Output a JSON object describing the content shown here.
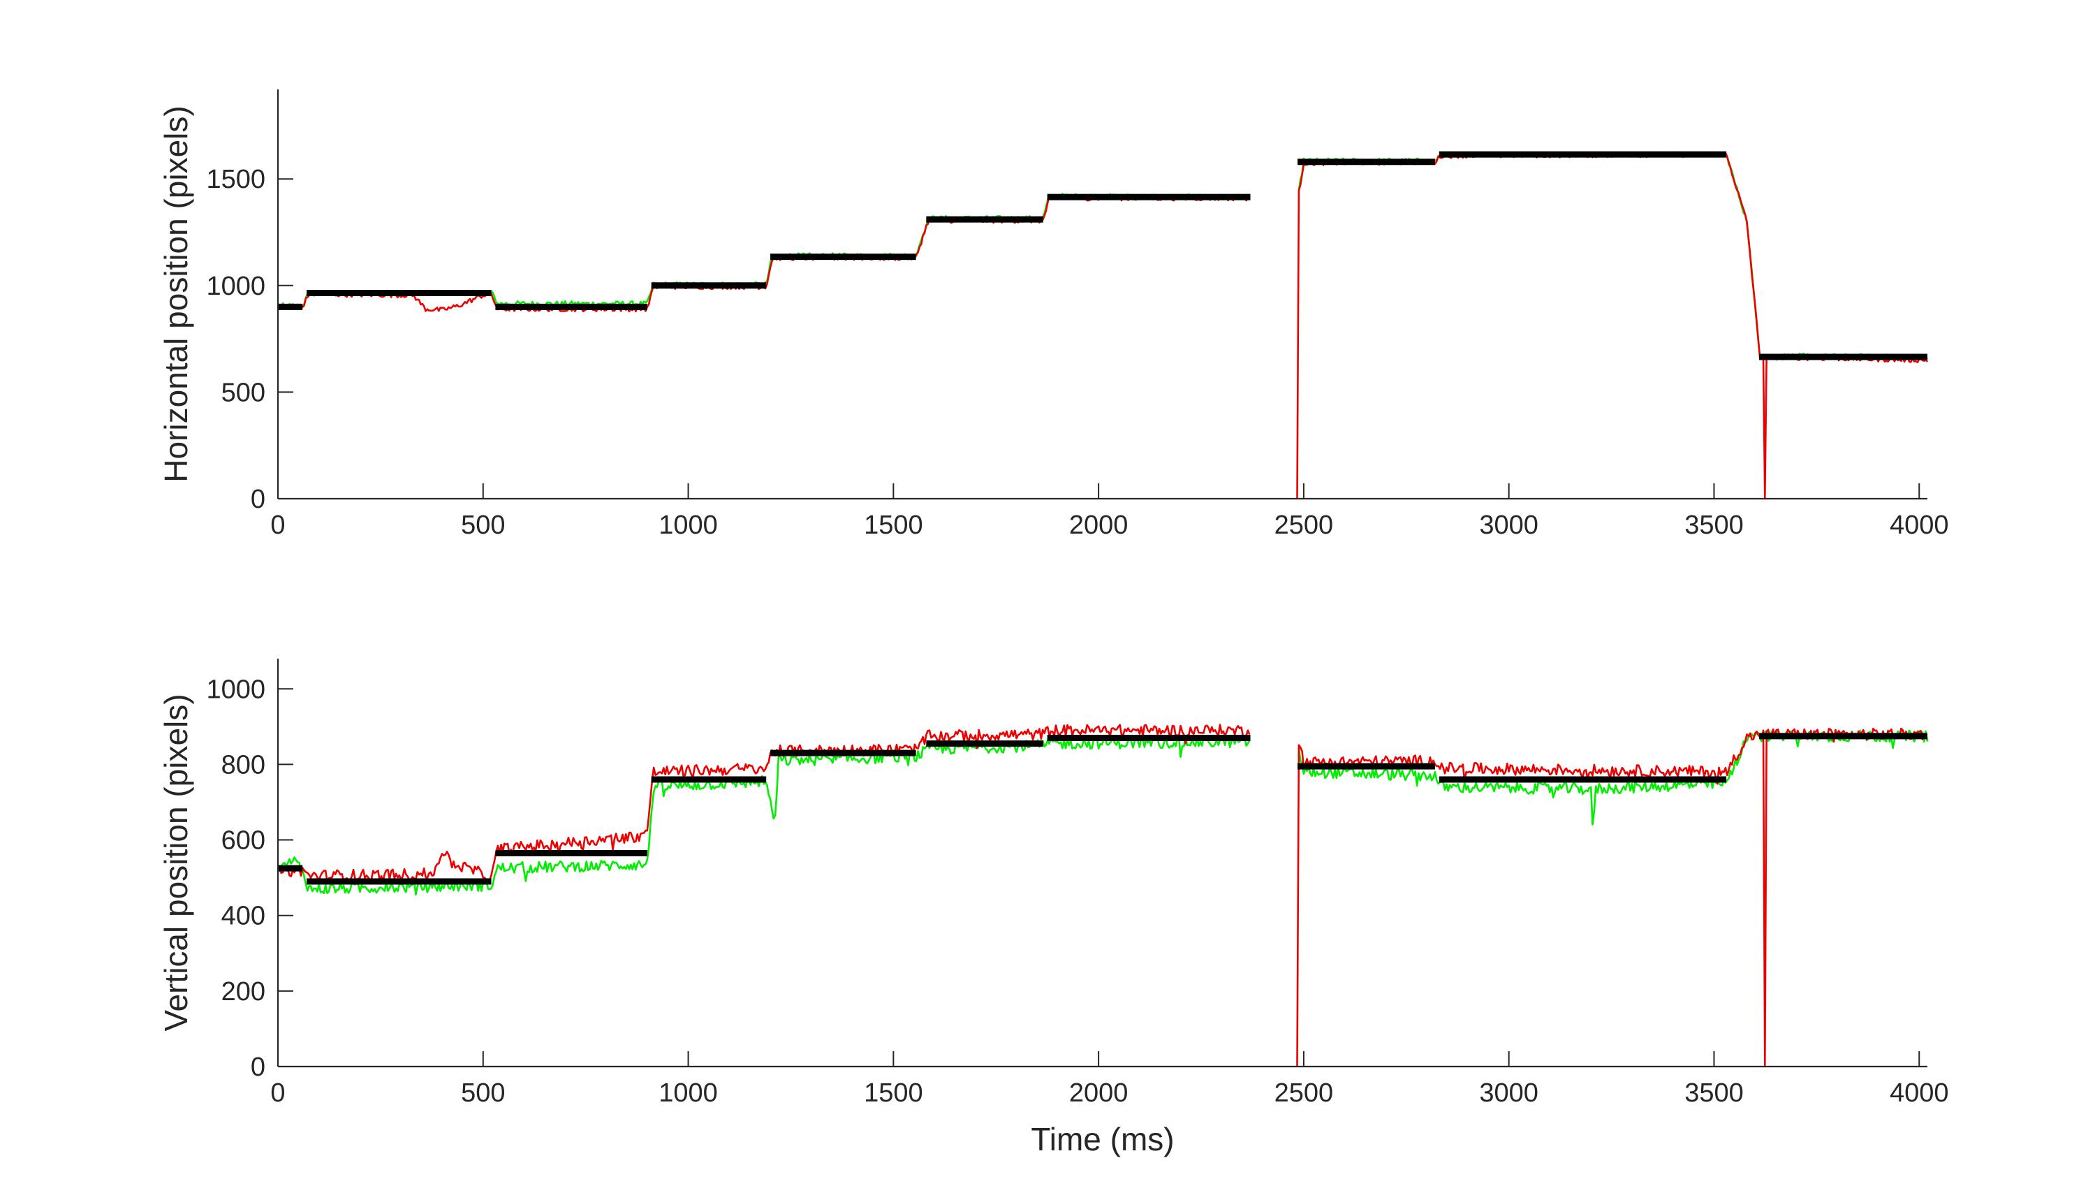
{
  "colors": {
    "fixation": "#000000",
    "green_trace": "#00ee00",
    "red_trace": "#ee0000",
    "axis": "#262626",
    "background": "#ffffff"
  },
  "chart_data": [
    {
      "type": "line",
      "title": "",
      "xlabel": "",
      "ylabel": "Horizontal position (pixels)",
      "xlim": [
        0,
        4020
      ],
      "ylim": [
        0,
        1920
      ],
      "x_ticks": [
        0,
        500,
        1000,
        1500,
        2000,
        2500,
        3000,
        3500,
        4000
      ],
      "y_ticks": [
        0,
        500,
        1000,
        1500
      ],
      "grid": false,
      "legend": "none",
      "gaps": [
        [
          2370,
          2485
        ]
      ],
      "dropouts": [
        [
          2368,
          2372
        ],
        [
          2480,
          2486
        ],
        [
          3592,
          3596
        ],
        [
          3604,
          3608
        ],
        [
          3623,
          3628
        ]
      ],
      "fixations": [
        {
          "x0": 0,
          "x1": 60,
          "y": 900
        },
        {
          "x0": 70,
          "x1": 520,
          "y": 965
        },
        {
          "x0": 530,
          "x1": 900,
          "y": 900
        },
        {
          "x0": 910,
          "x1": 1190,
          "y": 1000
        },
        {
          "x0": 1200,
          "x1": 1555,
          "y": 1135
        },
        {
          "x0": 1580,
          "x1": 1865,
          "y": 1310
        },
        {
          "x0": 1875,
          "x1": 2370,
          "y": 1415
        },
        {
          "x0": 2485,
          "x1": 2820,
          "y": 1580
        },
        {
          "x0": 2830,
          "x1": 3530,
          "y": 1615
        },
        {
          "x0": 3610,
          "x1": 4020,
          "y": 665
        }
      ],
      "series": [
        {
          "color": "green",
          "x": [
            0,
            60,
            75,
            500,
            520,
            535,
            900,
            915,
            1190,
            1205,
            1555,
            1585,
            1865,
            1880,
            2370,
            2485,
            2500,
            2820,
            2835,
            3530,
            3580,
            3612,
            4020
          ],
          "y": [
            905,
            905,
            965,
            965,
            970,
            915,
            915,
            1005,
            1005,
            1140,
            1140,
            1315,
            1315,
            1420,
            1415,
            1400,
            1585,
            1585,
            1615,
            1615,
            1300,
            670,
            665
          ]
        },
        {
          "color": "red",
          "x": [
            0,
            60,
            75,
            330,
            360,
            400,
            440,
            500,
            520,
            535,
            900,
            915,
            1190,
            1205,
            1555,
            1585,
            1865,
            1880,
            2370,
            2485,
            2500,
            2820,
            2835,
            3530,
            3580,
            3612,
            4020
          ],
          "y": [
            900,
            900,
            960,
            955,
            890,
            885,
            905,
            955,
            960,
            890,
            890,
            995,
            995,
            1130,
            1130,
            1305,
            1305,
            1410,
            1410,
            1400,
            1575,
            1580,
            1610,
            1615,
            1300,
            665,
            650
          ]
        }
      ]
    },
    {
      "type": "line",
      "title": "",
      "xlabel": "Time (ms)",
      "ylabel": "Vertical position (pixels)",
      "xlim": [
        0,
        4020
      ],
      "ylim": [
        0,
        1080
      ],
      "x_ticks": [
        0,
        500,
        1000,
        1500,
        2000,
        2500,
        3000,
        3500,
        4000
      ],
      "y_ticks": [
        0,
        200,
        400,
        600,
        800,
        1000
      ],
      "grid": false,
      "legend": "none",
      "gaps": [
        [
          2370,
          2485
        ]
      ],
      "dropouts": [
        [
          2368,
          2372
        ],
        [
          2480,
          2486
        ],
        [
          3592,
          3596
        ],
        [
          3604,
          3608
        ],
        [
          3623,
          3628
        ]
      ],
      "fixations": [
        {
          "x0": 0,
          "x1": 60,
          "y": 525
        },
        {
          "x0": 70,
          "x1": 520,
          "y": 490
        },
        {
          "x0": 530,
          "x1": 900,
          "y": 565
        },
        {
          "x0": 910,
          "x1": 1190,
          "y": 760
        },
        {
          "x0": 1200,
          "x1": 1555,
          "y": 830
        },
        {
          "x0": 1580,
          "x1": 1865,
          "y": 855
        },
        {
          "x0": 1875,
          "x1": 2370,
          "y": 870
        },
        {
          "x0": 2485,
          "x1": 2820,
          "y": 795
        },
        {
          "x0": 2830,
          "x1": 3530,
          "y": 760
        },
        {
          "x0": 3610,
          "x1": 4020,
          "y": 875
        }
      ],
      "series": [
        {
          "color": "green",
          "x": [
            0,
            40,
            60,
            75,
            520,
            535,
            900,
            915,
            1190,
            1200,
            1210,
            1220,
            1555,
            1585,
            1865,
            1880,
            2370,
            2485,
            2500,
            2820,
            2835,
            3200,
            3205,
            3210,
            3530,
            3590,
            3612,
            4020
          ],
          "y": [
            520,
            545,
            520,
            470,
            480,
            525,
            535,
            740,
            755,
            700,
            630,
            810,
            820,
            840,
            850,
            855,
            860,
            850,
            780,
            770,
            740,
            735,
            600,
            735,
            750,
            890,
            875,
            875
          ]
        },
        {
          "color": "red",
          "x": [
            0,
            60,
            75,
            380,
            400,
            420,
            500,
            520,
            535,
            880,
            900,
            915,
            1190,
            1205,
            1555,
            1585,
            1865,
            1880,
            2370,
            2485,
            2500,
            2820,
            2835,
            3530,
            3580,
            3612,
            4020
          ],
          "y": [
            515,
            520,
            505,
            510,
            575,
            540,
            510,
            495,
            575,
            610,
            625,
            780,
            790,
            835,
            840,
            875,
            880,
            890,
            890,
            880,
            805,
            810,
            790,
            780,
            870,
            880,
            880
          ]
        }
      ]
    }
  ]
}
